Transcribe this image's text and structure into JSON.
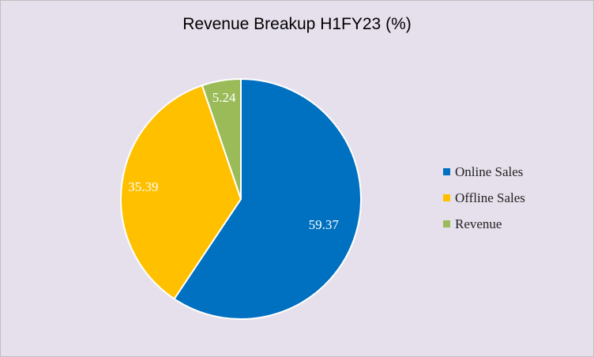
{
  "chart_data": {
    "type": "pie",
    "title": "Revenue Breakup H1FY23 (%)",
    "categories": [
      "Online Sales",
      "Offline Sales",
      "Revenue"
    ],
    "values": [
      59.37,
      35.39,
      5.24
    ],
    "value_labels": [
      "59.37",
      "35.39",
      "5.24"
    ],
    "colors": [
      "#0070c0",
      "#ffc000",
      "#9bbb59"
    ],
    "legend_position": "right"
  },
  "legend": {
    "items": [
      {
        "label": "Online Sales",
        "color": "#0070c0"
      },
      {
        "label": "Offline Sales",
        "color": "#ffc000"
      },
      {
        "label": "Revenue",
        "color": "#9bbb59"
      }
    ]
  }
}
